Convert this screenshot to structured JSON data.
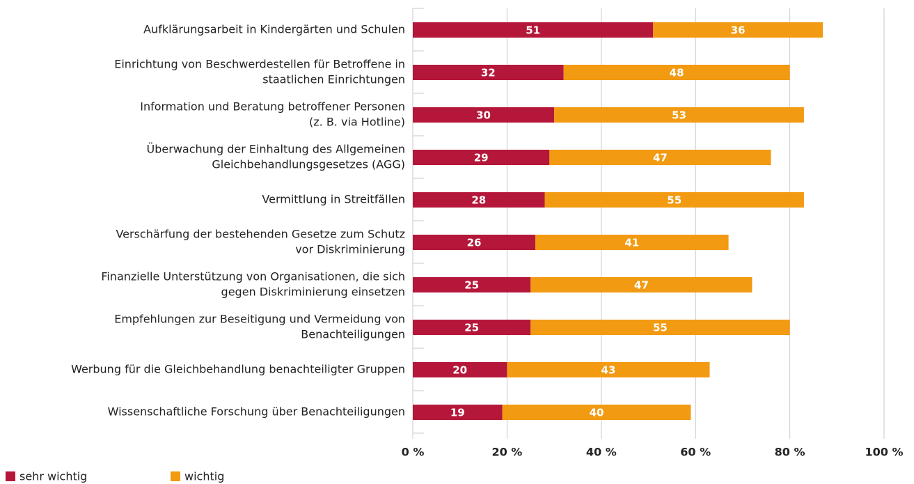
{
  "chart_data": {
    "type": "stacked-barh",
    "categories": [
      [
        "Aufklärungsarbeit in Kindergärten und Schulen"
      ],
      [
        "Einrichtung von Beschwerdestellen für Betroffene in",
        "staatlichen Einrichtungen"
      ],
      [
        "Information und Beratung betroffener Personen",
        "(z. B. via Hotline)"
      ],
      [
        "Überwachung der Einhaltung des Allgemeinen",
        "Gleichbehandlungsgesetzes (AGG)"
      ],
      [
        "Vermittlung in Streitfällen"
      ],
      [
        "Verschärfung der bestehenden Gesetze zum Schutz",
        "vor Diskriminierung"
      ],
      [
        "Finanzielle Unterstützung von Organisationen, die sich",
        "gegen Diskriminierung einsetzen"
      ],
      [
        "Empfehlungen zur Beseitigung und Vermeidung von",
        "Benachteiligungen"
      ],
      [
        "Werbung für die Gleichbehandlung benachteiligter Gruppen"
      ],
      [
        "Wissenschaftliche Forschung über Benachteiligungen"
      ]
    ],
    "series": [
      {
        "name": "sehr wichtig",
        "color": "#b5173a",
        "values": [
          51,
          32,
          30,
          29,
          28,
          26,
          25,
          25,
          20,
          19
        ]
      },
      {
        "name": "wichtig",
        "color": "#f29a11",
        "values": [
          36,
          48,
          53,
          47,
          55,
          41,
          47,
          55,
          43,
          40
        ]
      }
    ],
    "xlim": [
      0,
      100
    ],
    "xticks": [
      {
        "value": 0,
        "label": "0 %"
      },
      {
        "value": 20,
        "label": "20 %"
      },
      {
        "value": 40,
        "label": "40 %"
      },
      {
        "value": 60,
        "label": "60 %"
      },
      {
        "value": 80,
        "label": "80 %"
      },
      {
        "value": 100,
        "label": "100 %"
      }
    ],
    "grid": true
  }
}
